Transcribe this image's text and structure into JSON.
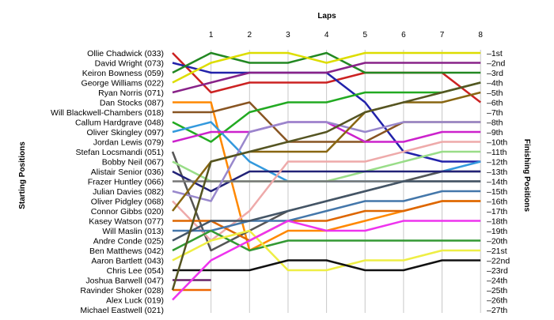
{
  "chart_data": {
    "type": "line",
    "title": "Laps",
    "xlabel": "Laps",
    "ylabel_left": "Starting Positions",
    "ylabel_right": "Finishing Positions",
    "laps": [
      1,
      2,
      3,
      4,
      5,
      6,
      7,
      8
    ],
    "finish_labels": [
      "1st",
      "2nd",
      "3rd",
      "4th",
      "5th",
      "6th",
      "7th",
      "8th",
      "9th",
      "10th",
      "11th",
      "12th",
      "13th",
      "14th",
      "15th",
      "16th",
      "17th",
      "18th",
      "19th",
      "20th",
      "21st",
      "22nd",
      "23rd",
      "24th",
      "25th",
      "26th",
      "27th"
    ],
    "grid": true,
    "series": [
      {
        "name": "Ollie Chadwick (033)",
        "color": "#cc2222",
        "positions": [
          1,
          5,
          4,
          4,
          4,
          3,
          3,
          3,
          6
        ]
      },
      {
        "name": "David Wright (073)",
        "color": "#2222aa",
        "positions": [
          2,
          3,
          3,
          3,
          3,
          6,
          11,
          12,
          12
        ]
      },
      {
        "name": "Keiron Bowness (059)",
        "color": "#228822",
        "positions": [
          3,
          1,
          2,
          2,
          1,
          3,
          3,
          3,
          3
        ]
      },
      {
        "name": "George Williams (022)",
        "color": "#dddd00",
        "positions": [
          4,
          2,
          1,
          1,
          2,
          1,
          1,
          1,
          1
        ]
      },
      {
        "name": "Ryan Norris (071)",
        "color": "#882288",
        "positions": [
          5,
          4,
          3,
          3,
          3,
          2,
          2,
          2,
          2
        ]
      },
      {
        "name": "Dan Stocks (087)",
        "color": "#ff8800",
        "positions": [
          6,
          6,
          21,
          19,
          19,
          18,
          17,
          16,
          16
        ]
      },
      {
        "name": "Will Blackwell-Chambers (018)",
        "color": "#885522",
        "positions": [
          7,
          7,
          6,
          10,
          10,
          10,
          8,
          8,
          8
        ]
      },
      {
        "name": "Callum Hardgrave (048)",
        "color": "#22aa22",
        "positions": [
          8,
          10,
          7,
          6,
          6,
          5,
          5,
          5,
          4
        ]
      },
      {
        "name": "Oliver Skingley (097)",
        "color": "#3399dd",
        "positions": [
          9,
          8,
          12,
          14,
          14,
          14,
          14,
          13,
          12
        ]
      },
      {
        "name": "Jordan Lewis (079)",
        "color": "#cc22cc",
        "positions": [
          10,
          9,
          9,
          8,
          8,
          10,
          10,
          9,
          9
        ]
      },
      {
        "name": "Stefan Locsmandi (051)",
        "color": "#555555",
        "positions": [
          11,
          21,
          19,
          17,
          16,
          15,
          14,
          13,
          13
        ]
      },
      {
        "name": "Bobby Neil (067)",
        "color": "#99dd88",
        "positions": [
          12,
          14,
          14,
          14,
          14,
          13,
          12,
          11,
          11
        ]
      },
      {
        "name": "Alistair Senior (036)",
        "color": "#222277",
        "positions": [
          13,
          15,
          13,
          13,
          13,
          13,
          13,
          13,
          13
        ]
      },
      {
        "name": "Frazer Huntley (066)",
        "color": "#777777",
        "positions": [
          14,
          14,
          14,
          14,
          14,
          14,
          14,
          14,
          14
        ]
      },
      {
        "name": "Julian Davies (082)",
        "color": "#9988cc",
        "positions": [
          15,
          16,
          9,
          8,
          8,
          9,
          8,
          8,
          8
        ]
      },
      {
        "name": "Oliver Pidgley (068)",
        "color": "#eeaaaa",
        "positions": [
          16,
          20,
          17,
          12,
          12,
          12,
          11,
          10,
          10
        ]
      },
      {
        "name": "Connor Gibbs (020)",
        "color": "#886611",
        "positions": [
          17,
          12,
          11,
          11,
          11,
          7,
          6,
          6,
          5
        ]
      },
      {
        "name": "Kasey Watson (077)",
        "color": "#dd6600",
        "positions": [
          18,
          18,
          20,
          18,
          18,
          17,
          17,
          16,
          16
        ]
      },
      {
        "name": "Will Maslin (013)",
        "color": "#4477aa",
        "positions": [
          19,
          19,
          18,
          18,
          17,
          16,
          16,
          15,
          15
        ]
      },
      {
        "name": "Andre Conde (025)",
        "color": "#445566",
        "positions": [
          20,
          18,
          18,
          17,
          16,
          15,
          14,
          14,
          14
        ]
      },
      {
        "name": "Ben Matthews (042)",
        "color": "#339933",
        "positions": [
          21,
          19,
          21,
          20,
          20,
          20,
          20,
          20,
          20
        ]
      },
      {
        "name": "Aaron Bartlett (043)",
        "color": "#eeee44",
        "positions": [
          22,
          20,
          19,
          23,
          23,
          22,
          22,
          21,
          21
        ]
      },
      {
        "name": "Chris Lee (054)",
        "color": "#111111",
        "positions": [
          23,
          23,
          23,
          22,
          22,
          23,
          23,
          22,
          22
        ]
      },
      {
        "name": "Joshua Barwell (047)",
        "color": "#662266",
        "positions": [
          24,
          24
        ]
      },
      {
        "name": "Ravinder Shoker (028)",
        "color": "#ee6600",
        "positions": [
          25,
          25
        ]
      },
      {
        "name": "Alex Luck (019)",
        "color": "#ee33ee",
        "positions": [
          26,
          22,
          20,
          18,
          19,
          19,
          18,
          18,
          18
        ]
      },
      {
        "name": "Michael Eastwell (021)",
        "color": "#555522",
        "positions": [
          25,
          12,
          11,
          10,
          9,
          7,
          6,
          5,
          4
        ]
      }
    ]
  }
}
